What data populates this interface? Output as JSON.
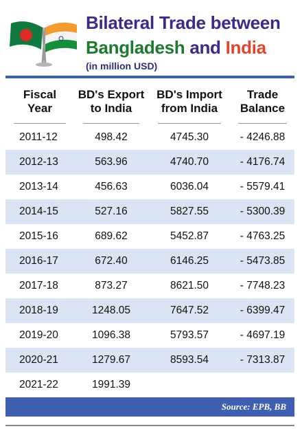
{
  "header": {
    "title_line1": "Bilateral Trade between",
    "title_bd": "Bangladesh",
    "title_and": "and",
    "title_in": "India",
    "subtitle": "(in million USD)"
  },
  "flags": {
    "left": "bangladesh-flag",
    "right": "india-flag"
  },
  "table": {
    "headers": [
      [
        "Fiscal",
        "Year"
      ],
      [
        "BD's Export",
        "to India"
      ],
      [
        "BD's Import",
        "from India"
      ],
      [
        "Trade",
        "Balance"
      ]
    ],
    "rows": [
      [
        "2011-12",
        "498.42",
        "4745.30",
        "- 4246.88"
      ],
      [
        "2012-13",
        "563.96",
        "4740.70",
        "- 4176.74"
      ],
      [
        "2013-14",
        "456.63",
        "6036.04",
        "- 5579.41"
      ],
      [
        "2014-15",
        "527.16",
        "5827.55",
        "- 5300.39"
      ],
      [
        "2015-16",
        "689.62",
        "5452.87",
        "- 4763.25"
      ],
      [
        "2016-17",
        "672.40",
        "6146.25",
        "- 5473.85"
      ],
      [
        "2017-18",
        "873.27",
        "8621.50",
        "- 7748.23"
      ],
      [
        "2018-19",
        "1248.05",
        "7647.52",
        "- 6399.47"
      ],
      [
        "2019-20",
        "1096.38",
        "5793.57",
        "- 4697.19"
      ],
      [
        "2020-21",
        "1279.67",
        "8593.54",
        "- 7313.87"
      ],
      [
        "2021-22",
        "1991.39",
        "",
        ""
      ]
    ]
  },
  "source": "Source: EPB, BB",
  "colors": {
    "accent": "#3f5fb0",
    "stripe": "#dbe4f3",
    "title_purple": "#3b2a88",
    "bd_green": "#1b7a2e",
    "india_red": "#e0462d"
  }
}
